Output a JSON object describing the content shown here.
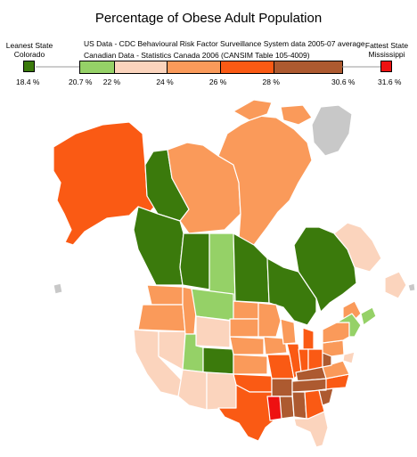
{
  "title": "Percentage of Obese Adult Population",
  "leanest": {
    "heading": "Leanest State",
    "name": "Colorado",
    "value": "18.4 %",
    "color": "#3b7a0c"
  },
  "fattest": {
    "heading": "Fattest State",
    "name": "Mississippi",
    "value": "31.6 %",
    "color": "#ee1111"
  },
  "sources": {
    "us": "US Data - CDC Behavioural Risk Factor Surveillance System data 2005-07 average",
    "canada": "Canadian Data - Statistics Canada 2006 (CANSIM Table 105-4009)"
  },
  "legend": {
    "bins": [
      {
        "from": 20.7,
        "to": 22.0,
        "color": "#95d167"
      },
      {
        "from": 22.0,
        "to": 24.0,
        "color": "#fbd4bd"
      },
      {
        "from": 24.0,
        "to": 26.0,
        "color": "#fa9a5a"
      },
      {
        "from": 26.0,
        "to": 28.0,
        "color": "#fa5a14"
      },
      {
        "from": 28.0,
        "to": 30.6,
        "color": "#ad5a30"
      }
    ],
    "ticks": [
      "20.7 %",
      "22 %",
      "24 %",
      "26 %",
      "28 %",
      "30.6 %"
    ]
  },
  "colors": {
    "dark_green": "#3b7a0c",
    "light_green": "#95d167",
    "pale_peach": "#fbd4bd",
    "light_orange": "#fa9a5a",
    "orange": "#fa5a14",
    "brown": "#ad5a30",
    "red": "#ee1111",
    "border": "#ffffff",
    "other_land": "#c8c8c8"
  }
}
